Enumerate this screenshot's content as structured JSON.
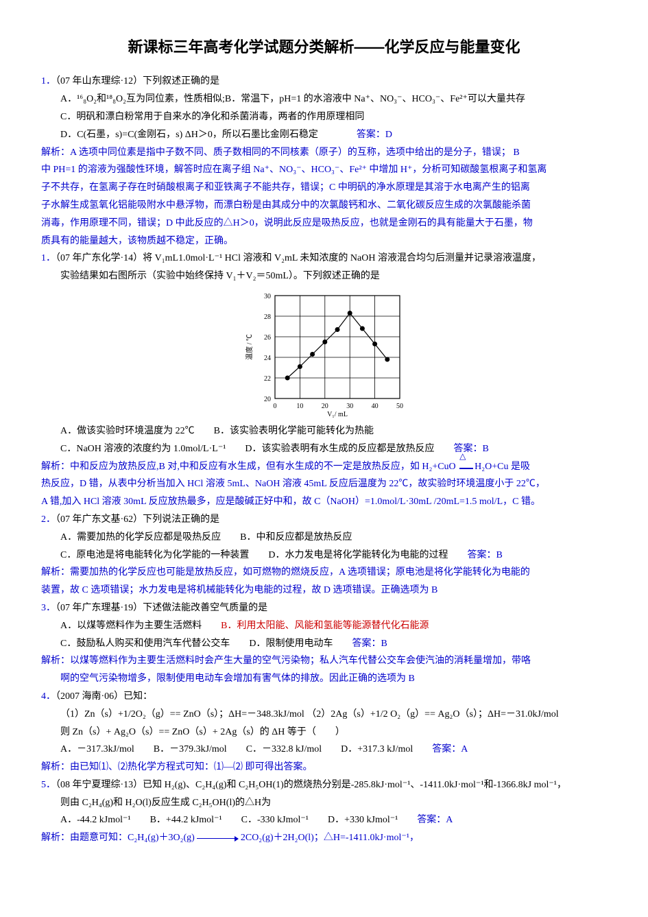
{
  "title": "新课标三年高考化学试题分类解析——化学反应与能量变化",
  "q1": {
    "num": "1．",
    "src": "（07 年山东理综·12）下列叙述正确的是",
    "A": "A．¹⁶₈O₂和¹⁸₈O₂互为同位素，性质相似;B．常温下，pH=1 的水溶液中 Na⁺、NO₃⁻、HCO₃⁻、Fe²⁺可以大量共存",
    "C": "C．明矾和漂白粉常用于自来水的净化和杀菌消毒，两者的作用原理相同",
    "D": "D．C(石墨，s)=C(金刚石，s)  ΔH＞0，所以石墨比金刚石稳定",
    "ans": "答案：D",
    "exp1": "解析：A 选项中同位素是指中子数不同、质子数相同的不同核素（原子）的互称，选项中给出的是分子，错误； B",
    "exp2": "中 PH=1 的溶液为强酸性环境，解答时应在离子组 Na⁺、NO₃⁻、HCO₃⁻、Fe²⁺ 中增加 H⁺，分析可知碳酸氢根离子和氢离",
    "exp3": "子不共存，在氢离子存在时硝酸根离子和亚铁离子不能共存，错误；C 中明矾的净水原理是其溶于水电离产生的铝离",
    "exp4": "子水解生成氢氧化铝能吸附水中悬浮物，而漂白粉是由其成分中的次氯酸钙和水、二氧化碳反应生成的次氯酸能杀菌",
    "exp5": "消毒，作用原理不同，错误；D 中此反应的△H＞0，说明此反应是吸热反应，也就是金刚石的具有能量大于石墨，物",
    "exp6": "质具有的能量越大，该物质越不稳定，正确。"
  },
  "q2": {
    "num": "1．",
    "src": "（07 年广东化学·14）将 V₁mL1.0mol·L⁻¹ HCl 溶液和 V₂mL 未知浓度的 NaOH 溶液混合均匀后测量并记录溶液温度，",
    "src2": "实验结果如右图所示（实验中始终保持 V₁＋V₂＝50mL）。下列叙述正确的是",
    "A": "A．做该实验时环境温度为 22℃",
    "B": "B．该实验表明化学能可能转化为热能",
    "C": "C．NaOH 溶液的浓度约为 1.0mol/L·L⁻¹",
    "D": "D．该实验表明有水生成的反应都是放热反应",
    "ans": "答案：B",
    "exp1_a": "解析：中和反应为放热反应,B 对,中和反应有水生成，但有水生成的不一定是放热反应，如 H₂+CuO ",
    "exp1_b": "H₂O+Cu 是吸",
    "exp2": "热反应，D 错，从表中分析当加入 HCl 溶液 5mL、NaOH 溶液 45mL 反应后温度为 22℃，故实验时环境温度小于 22℃，",
    "exp3": "A 错,加入 HCl 溶液 30mL 反应放热最多，应是酸碱正好中和，故 C（NaOH）=1.0mol/L·30mL /20mL=1.5 mol/L，C 错。"
  },
  "chart": {
    "xlabel": "V₁/ mL",
    "ylabel": "温度 / ℃",
    "xticks": [
      0,
      10,
      20,
      30,
      40,
      50
    ],
    "yticks": [
      20,
      22,
      24,
      26,
      28,
      30
    ],
    "xlim": [
      0,
      50
    ],
    "ylim": [
      20,
      30
    ],
    "grid_color": "#000000",
    "bg": "#ffffff",
    "points_x": [
      5,
      10,
      15,
      20,
      25,
      30,
      35,
      40,
      45
    ],
    "points_y": [
      22,
      23.1,
      24.3,
      25.5,
      26.7,
      28.3,
      26.8,
      25.3,
      23.8
    ],
    "marker_size": 3.5,
    "line_color": "#000000",
    "label_fontsize": 10
  },
  "q3": {
    "num": "2．",
    "src": "（07 年广东文基·62）下列说法正确的是",
    "A": "A．需要加热的化学反应都是吸热反应",
    "B": "B．中和反应都是放热反应",
    "C": "C．原电池是将电能转化为化学能的一种装置",
    "D": "D．水力发电是将化学能转化为电能的过程",
    "ans": "答案：B",
    "exp1": "解析：需要加热的化学反应也可能是放热反应，如可燃物的燃烧反应，A 选项错误；原电池是将化学能转化为电能的",
    "exp2": "装置，故 C 选项错误；水力发电是将机械能转化为电能的过程，故 D 选项错误。正确选项为 B"
  },
  "q4": {
    "num": "3．",
    "src": "（07 年广东理基·19）下述做法能改善空气质量的是",
    "A": "A．以煤等燃料作为主要生活燃料",
    "B": "B．利用太阳能、风能和氢能等能源替代化石能源",
    "C": "C．鼓励私人购买和使用汽车代替公交车",
    "D": "D．限制使用电动车",
    "ans": "答案：B",
    "exp1": "解析：以煤等燃料作为主要生活燃料时会产生大量的空气污染物；私人汽车代替公交车会使汽油的消耗量增加，带咯",
    "exp2": "啊的空气污染物增多，限制使用电动车会增加有害气体的排放。因此正确的选项为 B"
  },
  "q5": {
    "num": "4．",
    "src": "（2007 海南·06）已知：",
    "eq1": "（1）Zn（s）+1/2O₂（g）== ZnO（s）；ΔH=－348.3kJ/mol （2）2Ag（s）+1/2 O₂（g）== Ag₂O（s）；ΔH=－31.0kJ/mol",
    "eq2": "则 Zn（s）+ Ag₂O（s）== ZnO（s）+ 2Ag（s）的 ΔH 等于（　　）",
    "A": "A．－317.3kJ/mol",
    "B": "B．－379.3kJ/mol",
    "C": "C．－332.8 kJ/mol",
    "D": "D．+317.3 kJ/mol",
    "ans": "答案：A",
    "exp": "解析：由已知⑴、⑵热化学方程式可知：⑴—⑵ 即可得出答案。"
  },
  "q6": {
    "num": "5．",
    "src": "（08 年宁夏理综·13）已知 H₂(g)、C₂H₄(g)和 C₂H₅OH(1)的燃烧热分别是-285.8kJ·mol⁻¹、-1411.0kJ·mol⁻¹和-1366.8kJ mol⁻¹，",
    "src2": "则由 C₂H₄(g)和 H₂O(l)反应生成 C₂H₅OH(l)的△H为",
    "A": "A．-44.2  kJmol⁻¹",
    "B": "B．+44.2  kJmol⁻¹",
    "C": "C．-330  kJmol⁻¹",
    "D": "D．+330  kJmol⁻¹",
    "ans": "答案：A",
    "exp_a": "解析：由题意可知：C₂H₄(g)＋3O₂(g) ",
    "exp_b": " 2CO₂(g)＋2H₂O(l)；△H=-1411.0kJ·mol⁻¹，"
  }
}
